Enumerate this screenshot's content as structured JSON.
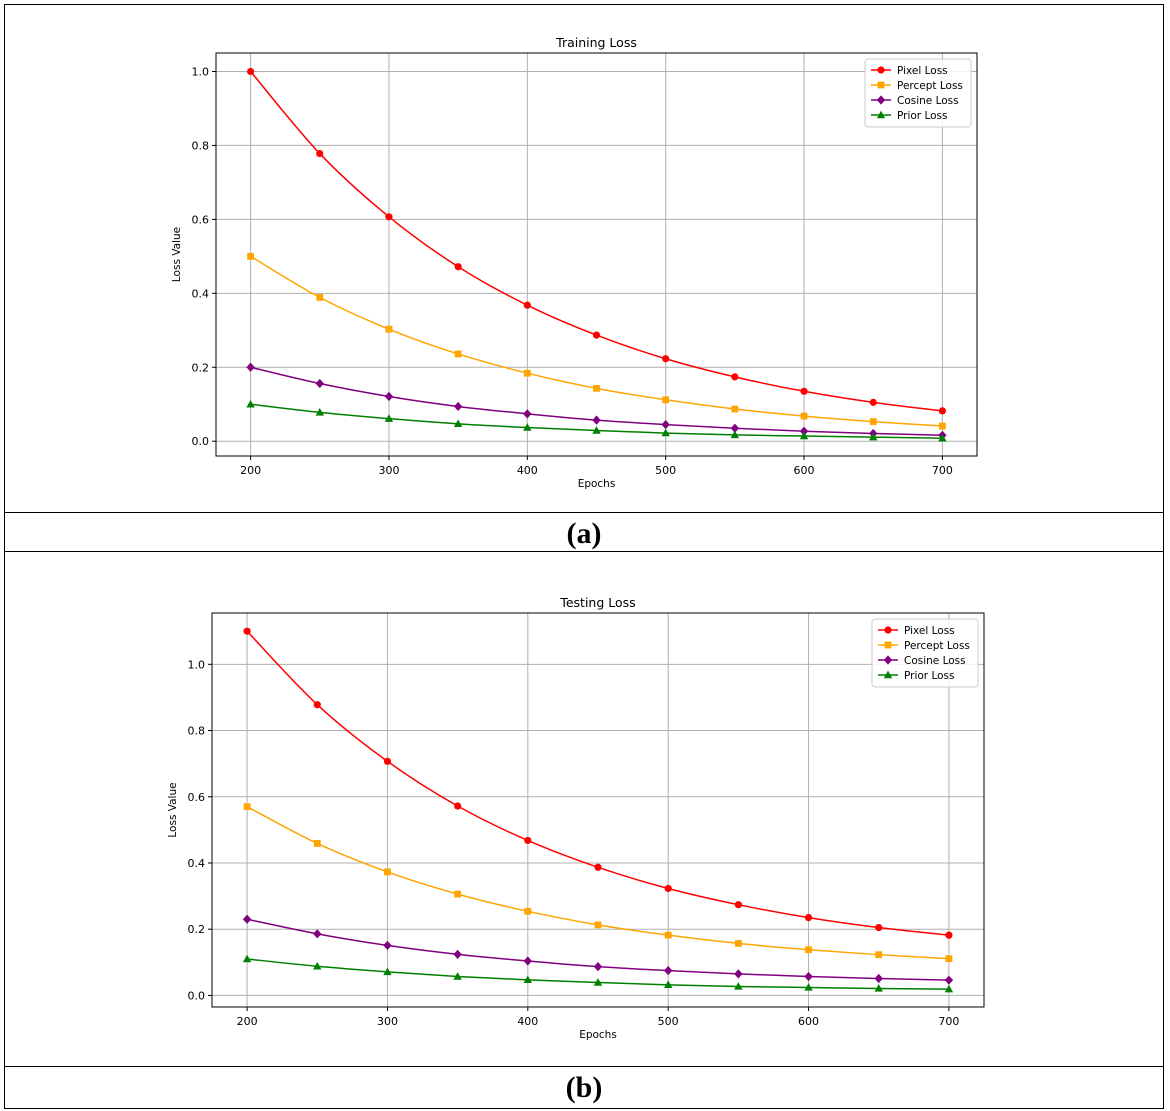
{
  "panels": [
    {
      "label": "(a)"
    },
    {
      "label": "(b)"
    }
  ],
  "chart_data": [
    {
      "type": "line",
      "title": "Training Loss",
      "xlabel": "Epochs",
      "ylabel": "Loss Value",
      "xlim": [
        175,
        725
      ],
      "ylim": [
        -0.04,
        1.05
      ],
      "xticks": [
        200,
        300,
        400,
        500,
        600,
        700
      ],
      "yticks": [
        0.0,
        0.2,
        0.4,
        0.6,
        0.8,
        1.0
      ],
      "grid": true,
      "legend": "top-right",
      "x": [
        200,
        250,
        300,
        350,
        400,
        450,
        500,
        550,
        600,
        650,
        700
      ],
      "series": [
        {
          "name": "Pixel Loss",
          "color": "#ff0000",
          "marker": "circle",
          "values": [
            1.0,
            0.778,
            0.607,
            0.472,
            0.368,
            0.287,
            0.223,
            0.174,
            0.135,
            0.105,
            0.082
          ]
        },
        {
          "name": "Percept Loss",
          "color": "#ffa500",
          "marker": "square",
          "values": [
            0.5,
            0.389,
            0.303,
            0.236,
            0.184,
            0.143,
            0.112,
            0.087,
            0.068,
            0.053,
            0.041
          ]
        },
        {
          "name": "Cosine Loss",
          "color": "#800080",
          "marker": "diamond",
          "values": [
            0.2,
            0.156,
            0.121,
            0.094,
            0.074,
            0.057,
            0.045,
            0.035,
            0.027,
            0.021,
            0.016
          ]
        },
        {
          "name": "Prior Loss",
          "color": "#008000",
          "marker": "triangle",
          "values": [
            0.1,
            0.078,
            0.061,
            0.047,
            0.037,
            0.029,
            0.022,
            0.017,
            0.014,
            0.011,
            0.008
          ]
        }
      ]
    },
    {
      "type": "line",
      "title": "Testing Loss",
      "xlabel": "Epochs",
      "ylabel": "Loss Value",
      "xlim": [
        175,
        725
      ],
      "ylim": [
        -0.035,
        1.155
      ],
      "xticks": [
        200,
        300,
        400,
        500,
        600,
        700
      ],
      "yticks": [
        0.0,
        0.2,
        0.4,
        0.6,
        0.8,
        1.0
      ],
      "grid": true,
      "legend": "top-right",
      "x": [
        200,
        250,
        300,
        350,
        400,
        450,
        500,
        550,
        600,
        650,
        700
      ],
      "series": [
        {
          "name": "Pixel Loss",
          "color": "#ff0000",
          "marker": "circle",
          "values": [
            1.1,
            0.878,
            0.707,
            0.572,
            0.468,
            0.387,
            0.323,
            0.274,
            0.235,
            0.205,
            0.182
          ]
        },
        {
          "name": "Percept Loss",
          "color": "#ffa500",
          "marker": "square",
          "values": [
            0.57,
            0.459,
            0.373,
            0.306,
            0.254,
            0.213,
            0.182,
            0.157,
            0.138,
            0.123,
            0.111
          ]
        },
        {
          "name": "Cosine Loss",
          "color": "#800080",
          "marker": "diamond",
          "values": [
            0.23,
            0.186,
            0.151,
            0.124,
            0.104,
            0.087,
            0.075,
            0.065,
            0.057,
            0.051,
            0.046
          ]
        },
        {
          "name": "Prior Loss",
          "color": "#008000",
          "marker": "triangle",
          "values": [
            0.11,
            0.088,
            0.071,
            0.057,
            0.047,
            0.039,
            0.032,
            0.027,
            0.024,
            0.021,
            0.019
          ]
        }
      ]
    }
  ]
}
